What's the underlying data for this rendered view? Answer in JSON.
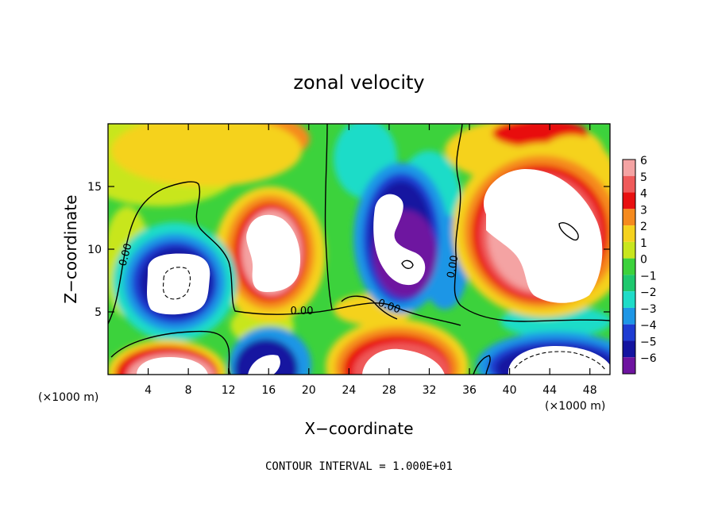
{
  "chart_data": {
    "type": "heatmap",
    "title": "zonal velocity",
    "xlabel": "X−coordinate",
    "ylabel": "Z−coordinate",
    "x_unit_left": "(×1000 m)",
    "x_unit_right": "(×1000 m)",
    "xlim": [
      0,
      50
    ],
    "ylim": [
      0,
      20
    ],
    "x_ticks": [
      4,
      8,
      12,
      16,
      20,
      24,
      28,
      32,
      36,
      40,
      44,
      48
    ],
    "y_ticks": [
      5,
      10,
      15
    ],
    "contour_interval_text": "CONTOUR INTERVAL = 1.000E+01",
    "contour_labels": [
      "0.00",
      "0.00",
      "0.00",
      "0.00"
    ],
    "colorbar": {
      "ticks": [
        "6",
        "5",
        "4",
        "3",
        "2",
        "1",
        "0",
        "−1",
        "−2",
        "−3",
        "−4",
        "−5",
        "−6"
      ],
      "values": [
        6,
        5,
        4,
        3,
        2,
        1,
        0,
        -1,
        -2,
        -3,
        -4,
        -5,
        -6
      ],
      "colors": [
        "#f4a3a3",
        "#ef5a5a",
        "#e81010",
        "#f58a1e",
        "#f5d21e",
        "#c8e61e",
        "#3cd23c",
        "#1ec86e",
        "#1edcc8",
        "#1e96e6",
        "#1e3cd2",
        "#1414a0",
        "#6e14a0"
      ]
    },
    "features": [
      {
        "kind": "max",
        "x": 43,
        "z": 12,
        "value": "strong positive"
      },
      {
        "kind": "max",
        "x": 14,
        "z": 10,
        "value": "strong positive"
      },
      {
        "kind": "max",
        "x": 28,
        "z": 1.5,
        "value": "strong positive"
      },
      {
        "kind": "max",
        "x": 6,
        "z": 1.5,
        "value": "strong positive"
      },
      {
        "kind": "min",
        "x": 6,
        "z": 7,
        "value": "strong negative"
      },
      {
        "kind": "min",
        "x": 29,
        "z": 10,
        "value": "strong negative"
      },
      {
        "kind": "min",
        "x": 46,
        "z": 1.5,
        "value": "strong negative"
      },
      {
        "kind": "min",
        "x": 16,
        "z": 1.5,
        "value": "strong negative"
      }
    ]
  }
}
